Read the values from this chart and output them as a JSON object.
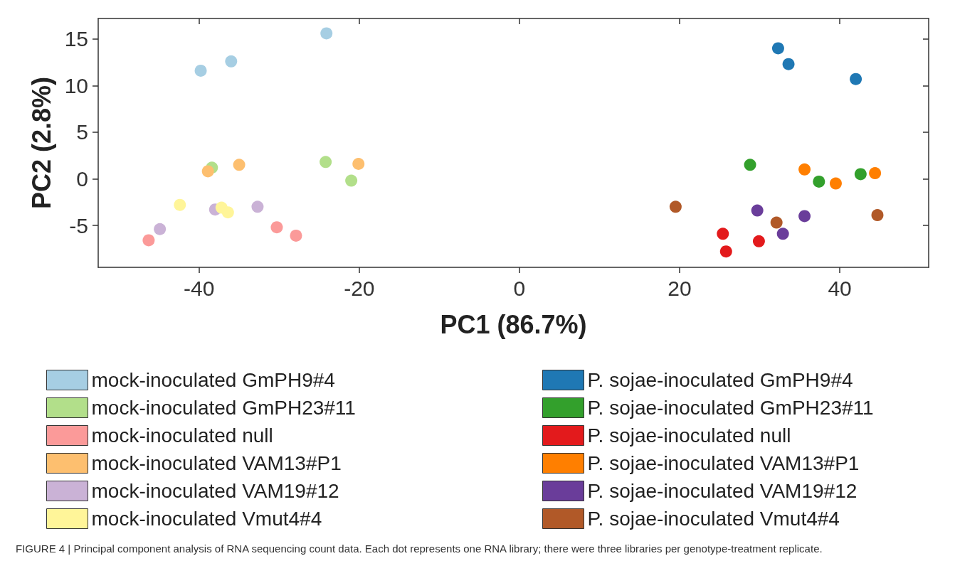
{
  "chart_data": {
    "type": "scatter",
    "xlabel": "PC1 (86.7%)",
    "ylabel": "PC2 (2.8%)",
    "xlim": [
      -52.6,
      51.1
    ],
    "ylim": [
      -9.5,
      17.2
    ],
    "xticks": [
      -40,
      -20,
      0,
      20,
      40
    ],
    "yticks": [
      -5,
      0,
      5,
      10,
      15
    ],
    "grid": false,
    "legend": "bottom",
    "marker": "circle",
    "annotations": [
      "FIGURE 4 | Principal component analysis of RNA sequencing count data. Each dot represents one RNA library; there were three libraries per genotype-treatment replicate."
    ],
    "series": [
      {
        "name": "mock-inoculated GmPH9#4",
        "color": "#a6cee3",
        "x": [
          -39.8,
          -36.0,
          -24.1
        ],
        "values": [
          11.6,
          12.6,
          15.6
        ]
      },
      {
        "name": "mock-inoculated GmPH23#11",
        "color": "#b2df8a",
        "x": [
          -38.4,
          -24.2,
          -21.0
        ],
        "values": [
          1.2,
          1.8,
          -0.2
        ]
      },
      {
        "name": "mock-inoculated null",
        "color": "#fb9a99",
        "x": [
          -46.3,
          -30.3,
          -27.9
        ],
        "values": [
          -6.6,
          -5.2,
          -6.1
        ]
      },
      {
        "name": "mock-inoculated VAM13#P1",
        "color": "#fdbf6f",
        "x": [
          -38.9,
          -35.0,
          -20.1
        ],
        "values": [
          0.8,
          1.5,
          1.6
        ]
      },
      {
        "name": "mock-inoculated VAM19#12",
        "color": "#cab2d6",
        "x": [
          -44.9,
          -38.0,
          -32.7
        ],
        "values": [
          -5.4,
          -3.3,
          -3.0
        ]
      },
      {
        "name": "mock-inoculated Vmut4#4",
        "color": "#fff599",
        "x": [
          -42.4,
          -37.2,
          -36.4
        ],
        "values": [
          -2.8,
          -3.1,
          -3.6
        ]
      },
      {
        "name": "P. sojae-inoculated GmPH9#4",
        "color": "#1f78b4",
        "x": [
          32.3,
          33.6,
          42.0
        ],
        "values": [
          14.0,
          12.3,
          10.7
        ]
      },
      {
        "name": "P. sojae-inoculated GmPH23#11",
        "color": "#33a02c",
        "x": [
          28.8,
          37.4,
          42.6
        ],
        "values": [
          1.5,
          -0.3,
          0.5
        ]
      },
      {
        "name": "P. sojae-inoculated null",
        "color": "#e31a1c",
        "x": [
          25.4,
          25.8,
          29.9
        ],
        "values": [
          -5.9,
          -7.8,
          -6.7
        ]
      },
      {
        "name": "P. sojae-inoculated VAM13#P1",
        "color": "#ff7f00",
        "x": [
          35.6,
          39.5,
          44.4
        ],
        "values": [
          1.0,
          -0.5,
          0.6
        ]
      },
      {
        "name": "P. sojae-inoculated VAM19#12",
        "color": "#6a3d9a",
        "x": [
          29.7,
          32.9,
          35.6
        ],
        "values": [
          -3.4,
          -5.9,
          -4.0
        ]
      },
      {
        "name": "P. sojae-inoculated Vmut4#4",
        "color": "#b15928",
        "x": [
          19.5,
          32.1,
          44.7
        ],
        "values": [
          -3.0,
          -4.7,
          -3.9
        ]
      }
    ]
  }
}
